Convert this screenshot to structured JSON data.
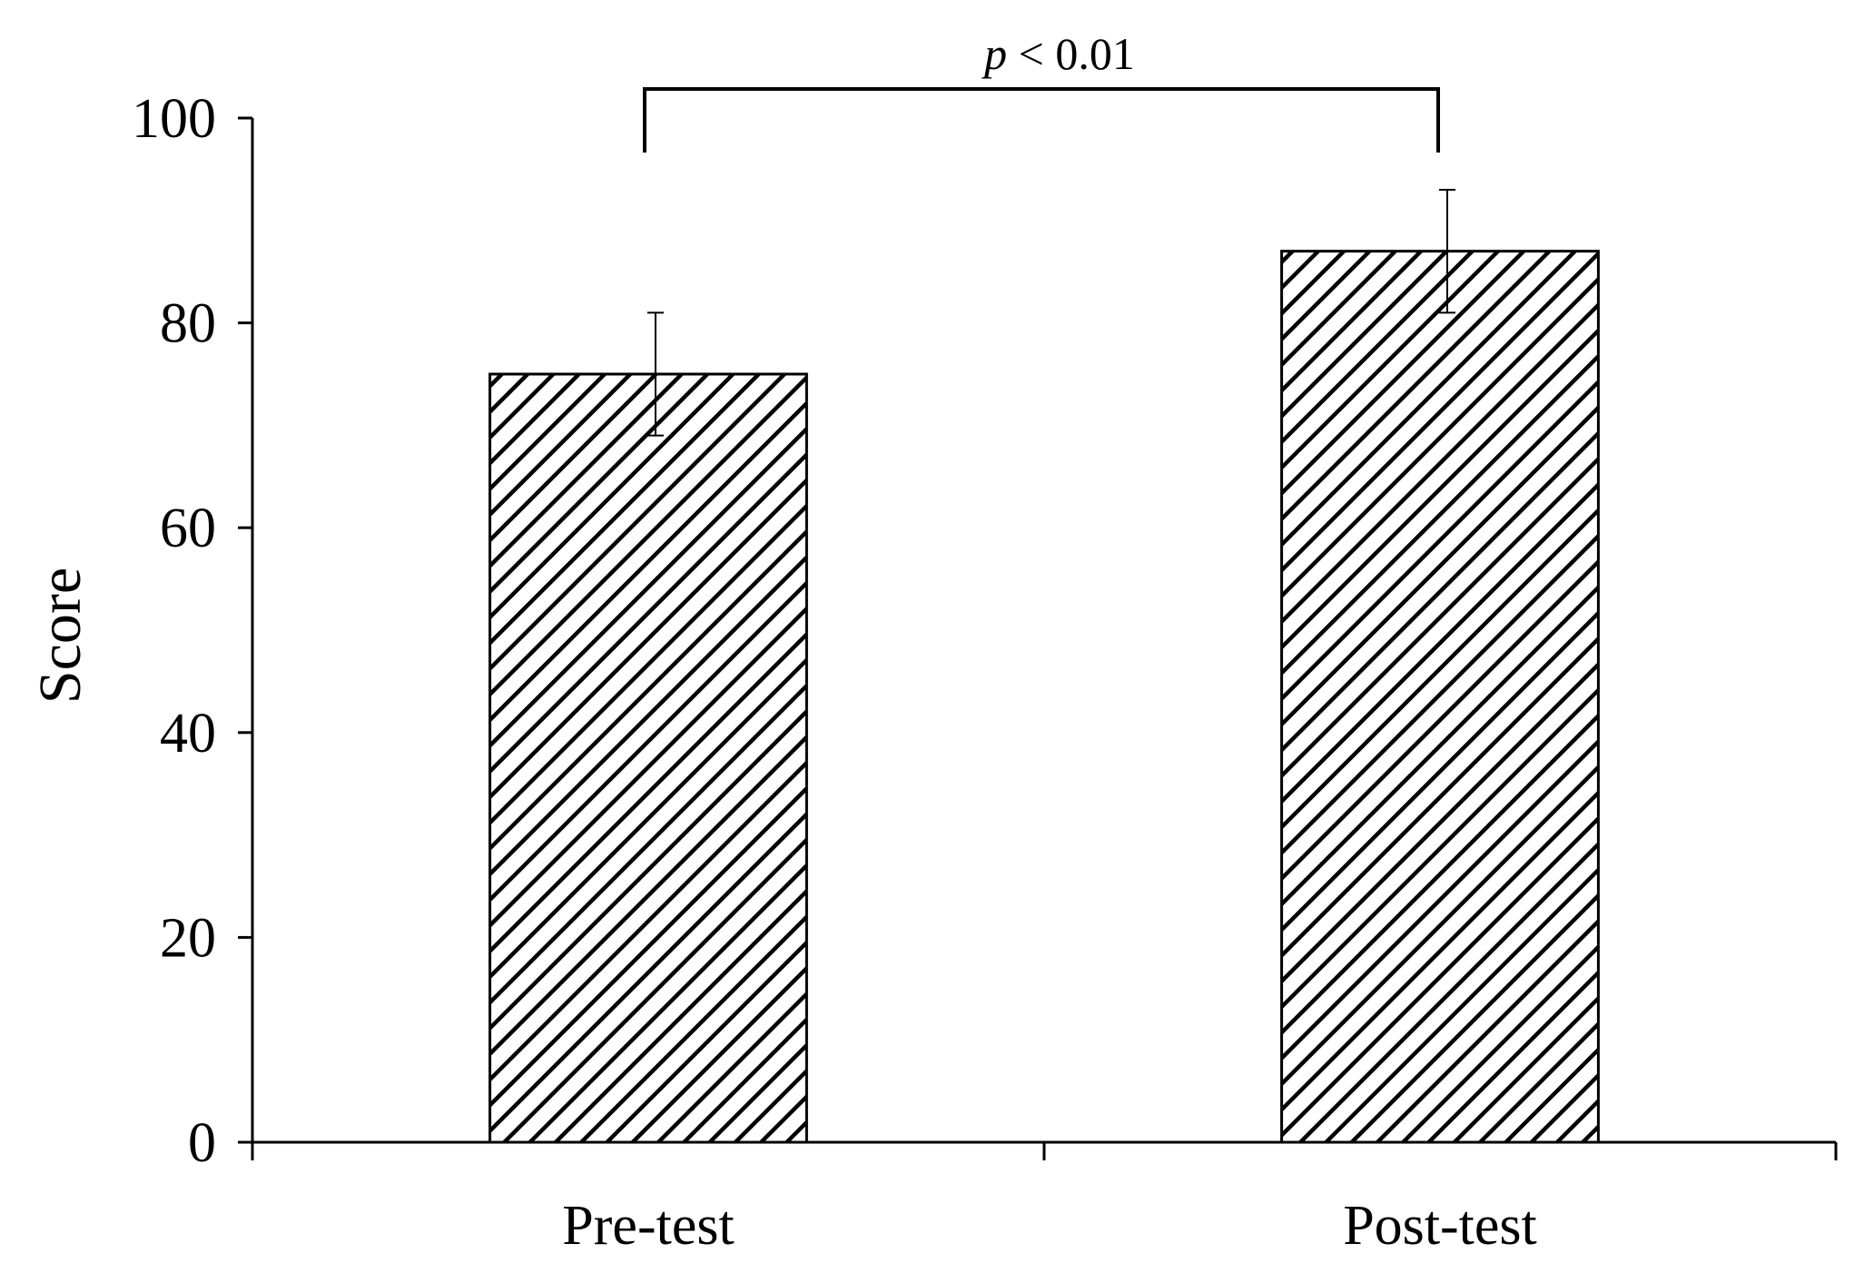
{
  "chart_data": {
    "type": "bar",
    "categories": [
      "Pre-test",
      "Post-test"
    ],
    "values": [
      75,
      87
    ],
    "error": [
      6,
      6
    ],
    "title": "",
    "xlabel": "",
    "ylabel": "Score",
    "ylim": [
      0,
      100
    ],
    "yticks": [
      "0",
      "20",
      "40",
      "60",
      "80",
      "100"
    ],
    "grid": false,
    "bar_fill": "diagonal hatch",
    "annotation": {
      "text_italic": "p",
      "text_rest": " < 0.01",
      "between": [
        "Pre-test",
        "Post-test"
      ]
    },
    "colors": {
      "bar_outline": "#000000",
      "hatch": "#000000",
      "background": "#ffffff"
    }
  }
}
